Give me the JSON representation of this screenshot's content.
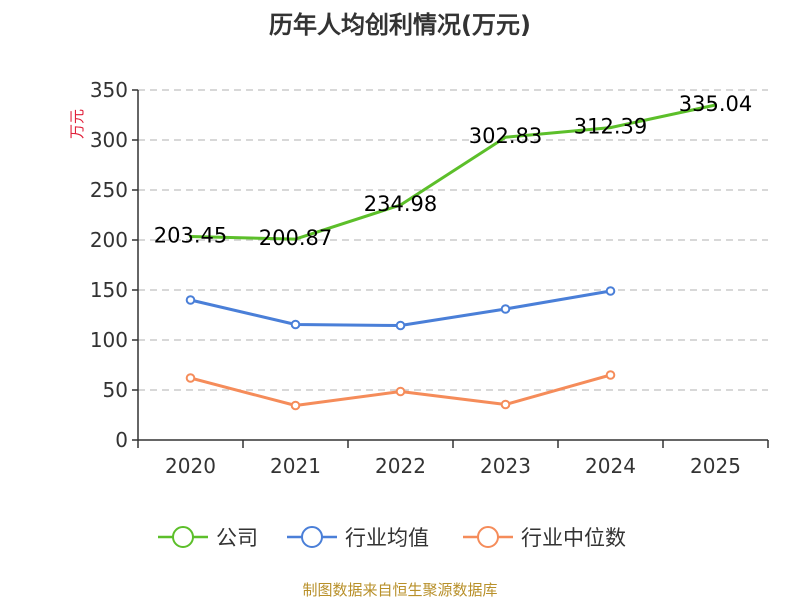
{
  "chart_data": {
    "type": "line",
    "title": "历年人均创利情况(万元)",
    "ylabel": "万元",
    "xlabel": "",
    "categories": [
      "2020",
      "2021",
      "2022",
      "2023",
      "2024",
      "2025"
    ],
    "ylim": [
      0,
      350
    ],
    "yticks": [
      0,
      50,
      100,
      150,
      200,
      250,
      300,
      350
    ],
    "grid": true,
    "legend_position": "bottom",
    "series": [
      {
        "name": "公司",
        "color": "#5cbf2a",
        "values": [
          203.45,
          200.87,
          234.98,
          302.83,
          312.39,
          335.04
        ],
        "data_labels": [
          "203.45",
          "200.87",
          "234.98",
          "302.83",
          "312.39",
          "335.04"
        ],
        "markers": false
      },
      {
        "name": "行业均值",
        "color": "#4a7fd8",
        "values": [
          140,
          115.5,
          114.5,
          131,
          149,
          null
        ],
        "markers": true
      },
      {
        "name": "行业中位数",
        "color": "#f58c5a",
        "values": [
          62,
          34.5,
          48.5,
          35.5,
          65,
          null
        ],
        "markers": true
      }
    ]
  },
  "footer": {
    "source": "制图数据来自恒生聚源数据库"
  }
}
